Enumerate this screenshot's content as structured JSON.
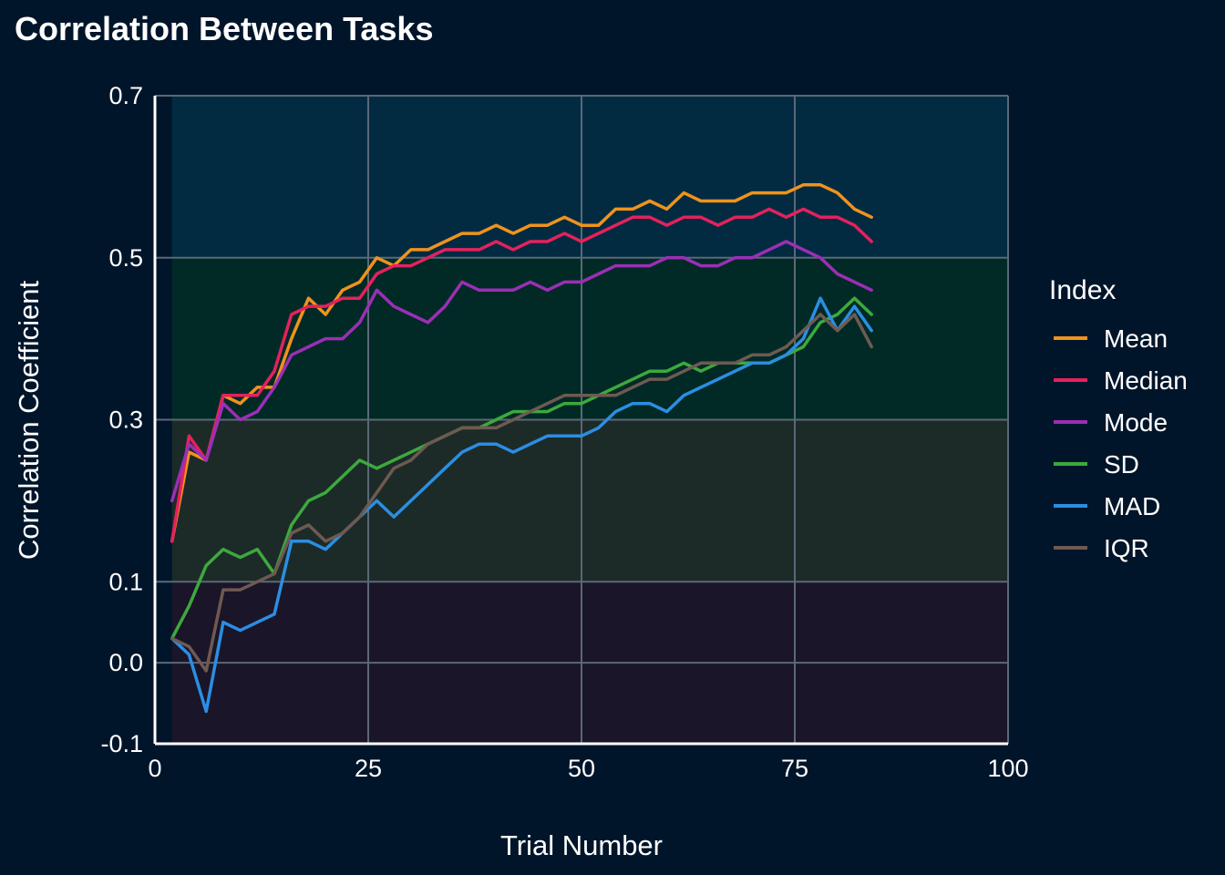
{
  "colors": {
    "background": "#00152a",
    "grid": "#5b6877",
    "axis": "#ffffff",
    "bands": [
      "#1a1528",
      "#1c2b28",
      "#012a26",
      "#022b42"
    ]
  },
  "chart_data": {
    "type": "line",
    "title": "Correlation Between Tasks",
    "xlabel": "Trial Number",
    "ylabel": "Correlation Coefficient",
    "xlim": [
      0,
      100
    ],
    "ylim": [
      -0.1,
      0.7
    ],
    "xticks": [
      0,
      25,
      50,
      75,
      100
    ],
    "xtick_labels": [
      "0",
      "25",
      "50",
      "75",
      "100"
    ],
    "yticks": [
      -0.1,
      0.0,
      0.1,
      0.3,
      0.5,
      0.7
    ],
    "ytick_labels": [
      "-0.1",
      "0.0",
      "0.1",
      "0.3",
      "0.5",
      "0.7"
    ],
    "grid": true,
    "background_bands": [
      {
        "from": -0.1,
        "to": 0.1
      },
      {
        "from": 0.1,
        "to": 0.3
      },
      {
        "from": 0.3,
        "to": 0.5
      },
      {
        "from": 0.5,
        "to": 0.7
      }
    ],
    "legend": {
      "title": "Index",
      "position": "right"
    },
    "x_start": 2,
    "x_step": 2,
    "series": [
      {
        "name": "Mean",
        "color": "#f0931c",
        "values": [
          0.15,
          0.26,
          0.25,
          0.33,
          0.32,
          0.34,
          0.34,
          0.4,
          0.45,
          0.43,
          0.46,
          0.47,
          0.5,
          0.49,
          0.51,
          0.51,
          0.52,
          0.53,
          0.53,
          0.54,
          0.53,
          0.54,
          0.54,
          0.55,
          0.54,
          0.54,
          0.56,
          0.56,
          0.57,
          0.56,
          0.58,
          0.57,
          0.57,
          0.57,
          0.58,
          0.58,
          0.58,
          0.59,
          0.59,
          0.58,
          0.56,
          0.55
        ]
      },
      {
        "name": "Median",
        "color": "#e5215d",
        "values": [
          0.15,
          0.28,
          0.25,
          0.33,
          0.33,
          0.33,
          0.36,
          0.43,
          0.44,
          0.44,
          0.45,
          0.45,
          0.48,
          0.49,
          0.49,
          0.5,
          0.51,
          0.51,
          0.51,
          0.52,
          0.51,
          0.52,
          0.52,
          0.53,
          0.52,
          0.53,
          0.54,
          0.55,
          0.55,
          0.54,
          0.55,
          0.55,
          0.54,
          0.55,
          0.55,
          0.56,
          0.55,
          0.56,
          0.55,
          0.55,
          0.54,
          0.52
        ]
      },
      {
        "name": "Mode",
        "color": "#9b2fb5",
        "values": [
          0.2,
          0.27,
          0.25,
          0.32,
          0.3,
          0.31,
          0.34,
          0.38,
          0.39,
          0.4,
          0.4,
          0.42,
          0.46,
          0.44,
          0.43,
          0.42,
          0.44,
          0.47,
          0.46,
          0.46,
          0.46,
          0.47,
          0.46,
          0.47,
          0.47,
          0.48,
          0.49,
          0.49,
          0.49,
          0.5,
          0.5,
          0.49,
          0.49,
          0.5,
          0.5,
          0.51,
          0.52,
          0.51,
          0.5,
          0.48,
          0.47,
          0.46
        ]
      },
      {
        "name": "SD",
        "color": "#3da93d",
        "values": [
          0.03,
          0.07,
          0.12,
          0.14,
          0.13,
          0.14,
          0.11,
          0.17,
          0.2,
          0.21,
          0.23,
          0.25,
          0.24,
          0.25,
          0.26,
          0.27,
          0.28,
          0.29,
          0.29,
          0.3,
          0.31,
          0.31,
          0.31,
          0.32,
          0.32,
          0.33,
          0.34,
          0.35,
          0.36,
          0.36,
          0.37,
          0.36,
          0.37,
          0.37,
          0.37,
          0.37,
          0.38,
          0.39,
          0.42,
          0.43,
          0.45,
          0.43
        ]
      },
      {
        "name": "MAD",
        "color": "#2b8ee3",
        "values": [
          0.03,
          0.01,
          -0.06,
          0.05,
          0.04,
          0.05,
          0.06,
          0.15,
          0.15,
          0.14,
          0.16,
          0.18,
          0.2,
          0.18,
          0.2,
          0.22,
          0.24,
          0.26,
          0.27,
          0.27,
          0.26,
          0.27,
          0.28,
          0.28,
          0.28,
          0.29,
          0.31,
          0.32,
          0.32,
          0.31,
          0.33,
          0.34,
          0.35,
          0.36,
          0.37,
          0.37,
          0.38,
          0.4,
          0.45,
          0.41,
          0.44,
          0.41
        ]
      },
      {
        "name": "IQR",
        "color": "#6e5a52",
        "values": [
          0.03,
          0.02,
          -0.01,
          0.09,
          0.09,
          0.1,
          0.11,
          0.16,
          0.17,
          0.15,
          0.16,
          0.18,
          0.21,
          0.24,
          0.25,
          0.27,
          0.28,
          0.29,
          0.29,
          0.29,
          0.3,
          0.31,
          0.32,
          0.33,
          0.33,
          0.33,
          0.33,
          0.34,
          0.35,
          0.35,
          0.36,
          0.37,
          0.37,
          0.37,
          0.38,
          0.38,
          0.39,
          0.41,
          0.43,
          0.41,
          0.43,
          0.39
        ]
      }
    ]
  }
}
